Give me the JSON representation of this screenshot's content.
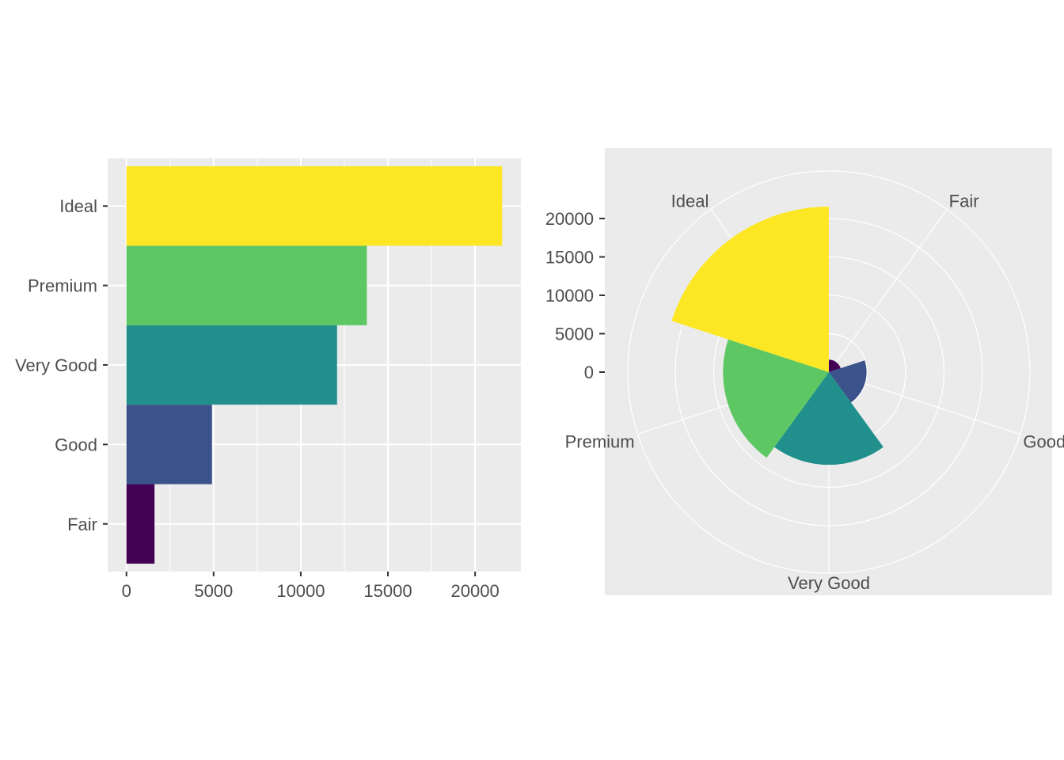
{
  "chart_data": [
    {
      "type": "bar",
      "orientation": "horizontal",
      "categories": [
        "Fair",
        "Good",
        "Very Good",
        "Premium",
        "Ideal"
      ],
      "values": [
        1610,
        4906,
        12082,
        13791,
        21551
      ],
      "colors": [
        "#440154",
        "#3B528B",
        "#21908C",
        "#5DC863",
        "#FDE725"
      ],
      "xlim": [
        -1077,
        22628
      ],
      "xticks": [
        0,
        5000,
        10000,
        15000,
        20000
      ],
      "xtick_labels": [
        "0",
        "5000",
        "10000",
        "15000",
        "20000"
      ],
      "title": "",
      "xlabel": "",
      "ylabel": "",
      "grid": true,
      "legend": "none"
    },
    {
      "type": "bar",
      "coord": "polar",
      "categories": [
        "Fair",
        "Good",
        "Very Good",
        "Premium",
        "Ideal"
      ],
      "values": [
        1610,
        4906,
        12082,
        13791,
        21551
      ],
      "colors": [
        "#440154",
        "#3B528B",
        "#21908C",
        "#5DC863",
        "#FDE725"
      ],
      "rlim": [
        0,
        21551
      ],
      "rticks": [
        0,
        5000,
        10000,
        15000,
        20000
      ],
      "rtick_labels": [
        "0",
        "5000",
        "10000",
        "15000",
        "20000"
      ],
      "title": "",
      "xlabel": "",
      "ylabel": "",
      "grid": true,
      "legend": "none"
    }
  ]
}
